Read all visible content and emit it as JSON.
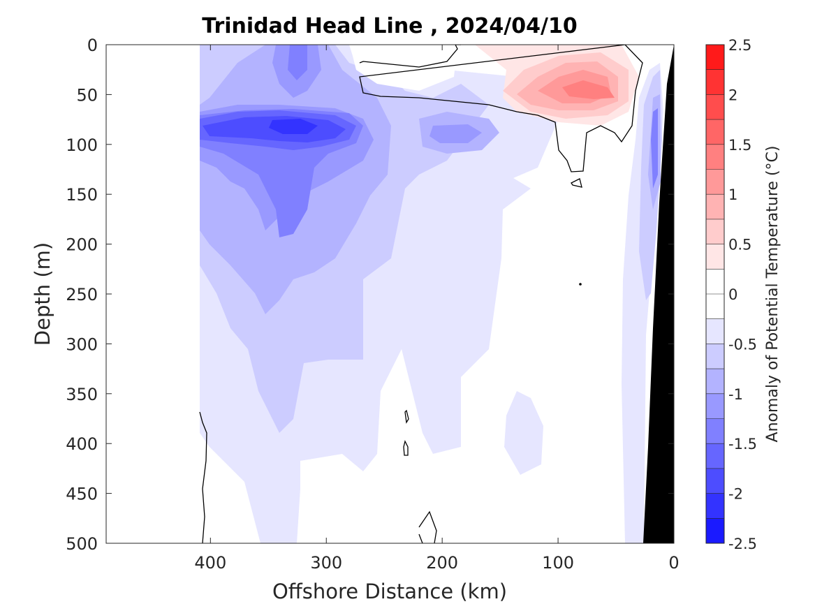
{
  "chart_data": {
    "type": "heatmap",
    "title": "Trinidad Head Line , 2024/04/10",
    "xlabel": "Offshore Distance (km)",
    "ylabel": "Depth (m)",
    "xlim": [
      490,
      0
    ],
    "ylim": [
      0,
      500
    ],
    "x_reversed": true,
    "y_reversed": true,
    "xticks": [
      "400",
      "300",
      "200",
      "100",
      "0"
    ],
    "xtick_values": [
      400,
      300,
      200,
      100,
      0
    ],
    "yticks": [
      "0",
      "50",
      "100",
      "150",
      "200",
      "250",
      "300",
      "350",
      "400",
      "450",
      "500"
    ],
    "ytick_values": [
      0,
      50,
      100,
      150,
      200,
      250,
      300,
      350,
      400,
      450,
      500
    ],
    "colorbar": {
      "label": "Anomaly of Potential Temperature (°C)",
      "ticks": [
        "2.5",
        "2",
        "1.5",
        "1",
        "0.5",
        "0",
        "-0.5",
        "-1",
        "-1.5",
        "-2",
        "-2.5"
      ],
      "tick_values": [
        2.5,
        2,
        1.5,
        1,
        0.5,
        0,
        -0.5,
        -1,
        -1.5,
        -2,
        -2.5
      ],
      "levels": [
        {
          "min": 2.25,
          "max": 2.5,
          "color": "#ff1a1a"
        },
        {
          "min": 2.0,
          "max": 2.25,
          "color": "#ff3333"
        },
        {
          "min": 1.75,
          "max": 2.0,
          "color": "#ff4d4d"
        },
        {
          "min": 1.5,
          "max": 1.75,
          "color": "#ff6666"
        },
        {
          "min": 1.25,
          "max": 1.5,
          "color": "#ff8080"
        },
        {
          "min": 1.0,
          "max": 1.25,
          "color": "#ff9999"
        },
        {
          "min": 0.75,
          "max": 1.0,
          "color": "#ffb3b3"
        },
        {
          "min": 0.5,
          "max": 0.75,
          "color": "#ffcccc"
        },
        {
          "min": 0.25,
          "max": 0.5,
          "color": "#ffe6e6"
        },
        {
          "min": 0.0,
          "max": 0.25,
          "color": "#ffffff"
        },
        {
          "min": -0.25,
          "max": 0.0,
          "color": "#ffffff"
        },
        {
          "min": -0.5,
          "max": -0.25,
          "color": "#e6e6ff"
        },
        {
          "min": -0.75,
          "max": -0.5,
          "color": "#ccccff"
        },
        {
          "min": -1.0,
          "max": -0.75,
          "color": "#b3b3ff"
        },
        {
          "min": -1.25,
          "max": -1.0,
          "color": "#9999ff"
        },
        {
          "min": -1.5,
          "max": -1.25,
          "color": "#8080ff"
        },
        {
          "min": -1.75,
          "max": -1.5,
          "color": "#6666ff"
        },
        {
          "min": -2.0,
          "max": -1.75,
          "color": "#4d4dff"
        },
        {
          "min": -2.25,
          "max": -2.0,
          "color": "#3333ff"
        },
        {
          "min": -2.5,
          "max": -2.25,
          "color": "#1a1aff"
        }
      ]
    },
    "data_extent_km": [
      408,
      0
    ],
    "bathymetry_color": "#000000",
    "zero_contour_color": "#000000"
  }
}
